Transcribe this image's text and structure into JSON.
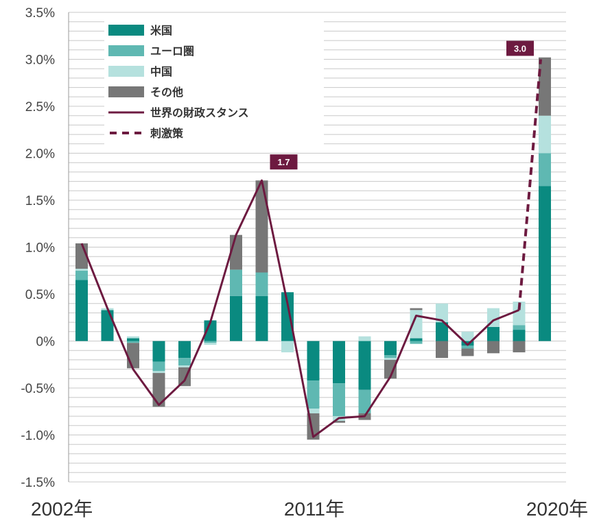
{
  "colors": {
    "us": "#0a8a80",
    "euro": "#5fb8b2",
    "china": "#b5e1de",
    "other": "#777777",
    "stance": "#6d1a40",
    "gridline": "#c8c8c8",
    "callout_bg": "#6d1a40"
  },
  "chart_data": {
    "type": "bar",
    "stacked": true,
    "x_tick_labels": [
      "2002年",
      "2011年",
      "2020年"
    ],
    "ylim": [
      -1.5,
      3.5
    ],
    "y_ticks": [
      3.5,
      3.0,
      2.5,
      2.0,
      1.5,
      1.0,
      0.5,
      0.0,
      -0.5,
      -1.0,
      -1.5
    ],
    "y_tick_labels": [
      "3.5%",
      "3.0%",
      "2.5%",
      "2.0%",
      "1.5%",
      "1.0%",
      "0.5%",
      "0%",
      "-0.5%",
      "-1.0%",
      "-1.5%"
    ],
    "grid": true,
    "legend_position": "top-left",
    "legend": [
      "米国",
      "ユーロ圏",
      "中国",
      "その他",
      "世界の財政スタンス",
      "刺激策"
    ],
    "series": [
      {
        "name": "米国",
        "color_key": "us",
        "values": [
          0.65,
          0.33,
          0.03,
          -0.22,
          -0.18,
          0.22,
          0.48,
          0.48,
          0.52,
          -0.42,
          -0.45,
          -0.52,
          -0.15,
          0.03,
          0.2,
          -0.05,
          0.15,
          0.12,
          1.65
        ]
      },
      {
        "name": "ユーロ圏",
        "color_key": "euro",
        "values": [
          0.1,
          0.0,
          -0.02,
          -0.1,
          -0.08,
          -0.02,
          0.28,
          0.25,
          0.0,
          -0.3,
          -0.35,
          -0.25,
          -0.03,
          -0.03,
          0.0,
          -0.03,
          0.0,
          0.05,
          0.35
        ]
      },
      {
        "name": "中国",
        "color_key": "china",
        "values": [
          0.02,
          0.02,
          0.02,
          -0.02,
          -0.02,
          -0.02,
          0.0,
          0.0,
          -0.12,
          -0.05,
          -0.05,
          0.05,
          -0.02,
          0.3,
          0.2,
          0.1,
          0.2,
          0.25,
          0.4
        ]
      },
      {
        "name": "その他",
        "color_key": "other",
        "values": [
          0.27,
          0.0,
          -0.27,
          -0.36,
          -0.2,
          0.0,
          0.37,
          0.98,
          0.0,
          -0.28,
          -0.02,
          -0.07,
          -0.2,
          0.02,
          -0.18,
          -0.08,
          -0.13,
          -0.12,
          0.62
        ]
      }
    ],
    "stance_line": {
      "name": "世界の財政スタンス",
      "color_key": "stance",
      "values": [
        1.04,
        0.35,
        -0.3,
        -0.68,
        -0.42,
        0.2,
        1.13,
        1.71,
        0.4,
        -1.02,
        -0.82,
        -0.8,
        -0.38,
        0.27,
        0.22,
        -0.04,
        0.22,
        0.33
      ]
    },
    "stimulus_line": {
      "name": "刺激策",
      "color_key": "stance",
      "from_index": 17,
      "to_index": 18,
      "values": [
        0.33,
        3.0
      ]
    },
    "annotations": [
      {
        "text": "1.7",
        "index": 7,
        "value": 1.71
      },
      {
        "text": "3.0",
        "index": 18,
        "value": 3.0
      }
    ]
  }
}
